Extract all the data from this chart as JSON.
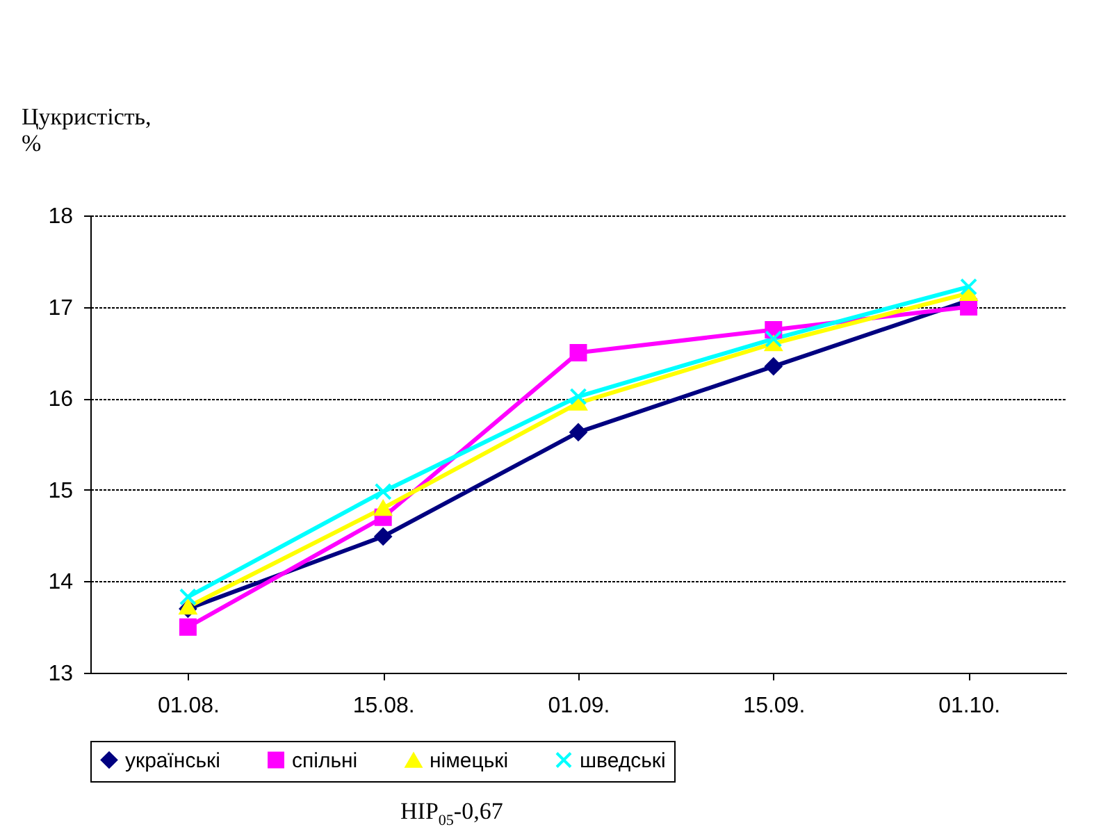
{
  "chart_data": {
    "type": "line",
    "ylabel": "Цукристість, %",
    "categories": [
      "01.08.",
      "15.08.",
      "01.09.",
      "15.09.",
      "01.10."
    ],
    "series": [
      {
        "name": "українські",
        "color": "#000080",
        "marker": "diamond",
        "values": [
          13.7,
          14.49,
          15.63,
          16.35,
          17.07
        ]
      },
      {
        "name": "спільні",
        "color": "#ff00ff",
        "marker": "square",
        "values": [
          13.5,
          14.7,
          16.5,
          16.75,
          17.0
        ]
      },
      {
        "name": "німецькі",
        "color": "#ffff00",
        "marker": "triangle",
        "values": [
          13.72,
          14.8,
          15.95,
          16.6,
          17.15
        ]
      },
      {
        "name": "шведські",
        "color": "#00ffff",
        "marker": "cross",
        "values": [
          13.83,
          14.98,
          16.02,
          16.65,
          17.22
        ]
      }
    ],
    "ylim": [
      13,
      18
    ],
    "yticks": [
      13,
      14,
      15,
      16,
      17,
      18
    ],
    "grid": "y",
    "legend": "bottom",
    "line_style": "solid",
    "annotations": [
      "HIP$_{05}$-0,67"
    ]
  }
}
